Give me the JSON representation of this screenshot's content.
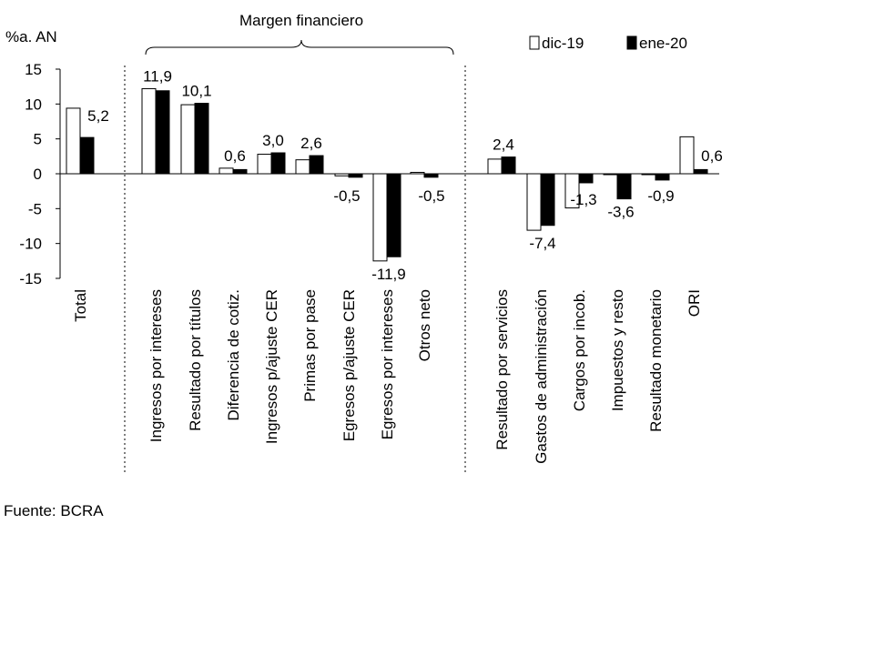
{
  "chart_data": {
    "type": "bar",
    "ylabel": "%a. AN",
    "ylim": [
      -15,
      15
    ],
    "yticks": [
      15,
      10,
      5,
      0,
      -5,
      -10,
      -15
    ],
    "ytick_labels": [
      "15",
      "10",
      "5",
      "0",
      "-5",
      "-10",
      "-15"
    ],
    "grid": false,
    "legend_position": "top-right",
    "bracket_label": "Margen financiero",
    "categories": [
      "Total",
      "Ingresos por intereses",
      "Resultado por títulos",
      "Diferencia de cotiz.",
      "Ingresos p/ajuste CER",
      "Primas por pase",
      "Egresos p/ajuste CER",
      "Egresos por intereses",
      "Otros neto",
      "Resultado por servicios",
      "Gastos de administración",
      "Cargos por incob.",
      "Impuestos y resto",
      "Resultado monetario",
      "ORI"
    ],
    "series": [
      {
        "name": "dic-19",
        "color": "#ffffff",
        "stroke": "#000000",
        "values": [
          9.4,
          12.2,
          9.9,
          0.8,
          2.8,
          2.0,
          -0.3,
          -12.5,
          0.2,
          2.1,
          -8.1,
          -4.9,
          -0.1,
          -0.1,
          5.3
        ]
      },
      {
        "name": "ene-20",
        "color": "#000000",
        "stroke": "#000000",
        "values": [
          5.2,
          11.9,
          10.1,
          0.6,
          3.0,
          2.6,
          -0.5,
          -11.9,
          -0.5,
          2.4,
          -7.4,
          -1.3,
          -3.6,
          -0.9,
          0.6
        ]
      }
    ],
    "data_labels": [
      "5,2",
      "11,9",
      "10,1",
      "0,6",
      "3,0",
      "2,6",
      "-0,5",
      "-11,9",
      "-0,5",
      "2,4",
      "-7,4",
      "-1,3",
      "-3,6",
      "-0,9",
      "0,6"
    ]
  },
  "source_text": "Fuente: BCRA"
}
